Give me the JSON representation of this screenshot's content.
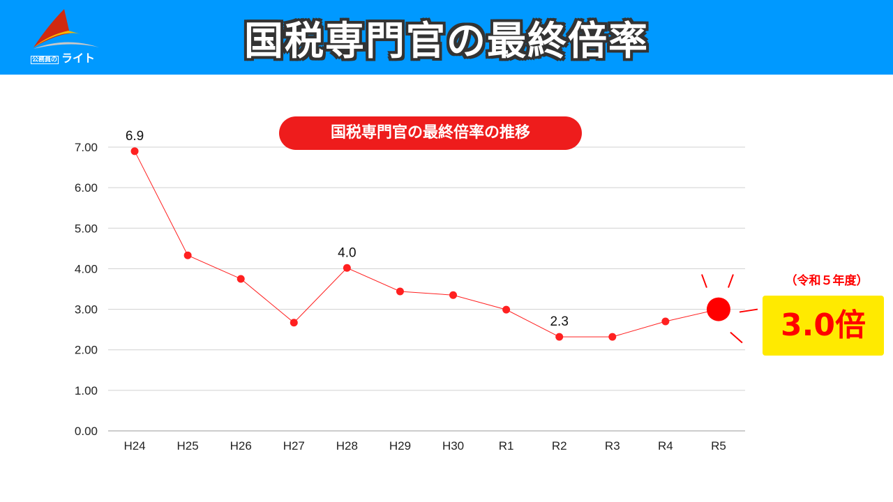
{
  "header": {
    "title": "国税専門官の最終倍率",
    "logo_small": "公務員の",
    "logo_main": "ライト"
  },
  "callout": {
    "era": "（令和５年度）",
    "value": "3.0倍"
  },
  "colors": {
    "header_bg": "#0099ff",
    "accent": "#ff0000",
    "badge_bg": "#ffea00",
    "line": "#ff2020"
  },
  "chart_data": {
    "type": "line",
    "title": "国税専門官の最終倍率の推移",
    "categories": [
      "H24",
      "H25",
      "H26",
      "H27",
      "H28",
      "H29",
      "H30",
      "R1",
      "R2",
      "R3",
      "R4",
      "R5"
    ],
    "values": [
      6.9,
      4.33,
      3.75,
      2.67,
      4.02,
      3.44,
      3.35,
      2.99,
      2.32,
      2.32,
      2.7,
      3.0
    ],
    "data_labels": {
      "0": "6.9",
      "4": "4.0",
      "8": "2.3"
    },
    "ylim": [
      0,
      7
    ],
    "yticks": [
      "0.00",
      "1.00",
      "2.00",
      "3.00",
      "4.00",
      "5.00",
      "6.00",
      "7.00"
    ],
    "grid": true,
    "xlabel": "",
    "ylabel": ""
  }
}
